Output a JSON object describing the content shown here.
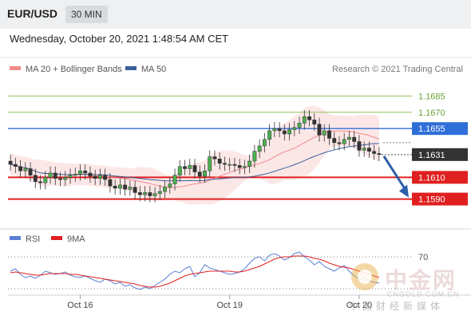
{
  "header": {
    "pair": "EUR/USD",
    "timeframe": "30 MIN"
  },
  "datetime": "Wednesday, October 20, 2021 1:48:54 AM CET",
  "watermark": {
    "cn": "中金网",
    "en": "CNGOLD.COM.CN",
    "sub": "中国财经新媒体"
  },
  "chart_data": {
    "type": "candlestick",
    "credit": "Research © 2021 Trading Central",
    "legend": [
      {
        "name": "MA 20 + Bollinger Bands",
        "color": "#f08a8a"
      },
      {
        "name": "MA 50",
        "color": "#3a5f9a"
      }
    ],
    "ylim": [
      1.5555,
      1.17
    ],
    "price_levels": [
      {
        "value": 1.1685,
        "label": "1.1685",
        "kind": "resistance-target",
        "color": "#8fbf5a"
      },
      {
        "value": 1.167,
        "label": "1.1670",
        "kind": "resistance-target",
        "color": "#8fbf5a"
      },
      {
        "value": 1.1655,
        "label": "1.1655",
        "kind": "pivot",
        "color": "#2f6fd8"
      },
      {
        "value": 1.1631,
        "label": "1.1631",
        "kind": "current-price",
        "color": "#333333"
      },
      {
        "value": 1.161,
        "label": "1.1610",
        "kind": "support-target",
        "color": "#e02020"
      },
      {
        "value": 1.159,
        "label": "1.1590",
        "kind": "support-target",
        "color": "#e02020"
      }
    ],
    "x_ticks": [
      {
        "label": "Oct 16",
        "bar": 14
      },
      {
        "label": "Oct 19",
        "bar": 44
      },
      {
        "label": "Oct 20",
        "bar": 70
      }
    ],
    "candles_close": [
      1.1622,
      1.162,
      1.1616,
      1.1618,
      1.1612,
      1.1606,
      1.1605,
      1.161,
      1.1614,
      1.1609,
      1.1608,
      1.161,
      1.1612,
      1.1613,
      1.1616,
      1.1614,
      1.1611,
      1.1609,
      1.1612,
      1.1608,
      1.1602,
      1.16,
      1.1603,
      1.1599,
      1.1601,
      1.1596,
      1.1594,
      1.1596,
      1.1593,
      1.1595,
      1.1597,
      1.1601,
      1.1604,
      1.1612,
      1.162,
      1.1618,
      1.1621,
      1.1615,
      1.1611,
      1.1616,
      1.1629,
      1.1627,
      1.1623,
      1.1622,
      1.1622,
      1.1621,
      1.1619,
      1.162,
      1.1625,
      1.1634,
      1.1639,
      1.1645,
      1.1653,
      1.1655,
      1.1653,
      1.165,
      1.1654,
      1.1656,
      1.166,
      1.1666,
      1.1663,
      1.1659,
      1.1649,
      1.1653,
      1.1646,
      1.1642,
      1.1641,
      1.1645,
      1.1647,
      1.1643,
      1.1635,
      1.1637,
      1.1634,
      1.1632,
      1.1631
    ],
    "forecast_arrow": {
      "from": 1.1631,
      "to": 1.159
    },
    "rsi": {
      "legend": [
        {
          "name": "RSI",
          "color": "#5a7fd6"
        },
        {
          "name": "9MA",
          "color": "#e02020"
        }
      ],
      "level_label": "70",
      "rsi_values": [
        52,
        55,
        48,
        44,
        46,
        43,
        47,
        52,
        50,
        48,
        49,
        51,
        47,
        45,
        44,
        46,
        43,
        40,
        38,
        42,
        40,
        36,
        38,
        33,
        35,
        31,
        29,
        32,
        30,
        34,
        38,
        42,
        48,
        52,
        50,
        55,
        58,
        45,
        50,
        60,
        56,
        54,
        52,
        50,
        48,
        49,
        51,
        55,
        62,
        68,
        70,
        65,
        72,
        74,
        71,
        66,
        69,
        74,
        76,
        70,
        66,
        60,
        64,
        58,
        55,
        52,
        56,
        59,
        52,
        46,
        42,
        44,
        40,
        38,
        37
      ],
      "ma_values": [
        50,
        51,
        50,
        49,
        48,
        47,
        47,
        48,
        49,
        49,
        49,
        49,
        48,
        48,
        47,
        46,
        45,
        44,
        43,
        42,
        41,
        40,
        39,
        38,
        37,
        36,
        34,
        33,
        32,
        32,
        33,
        35,
        37,
        40,
        43,
        46,
        48,
        49,
        50,
        51,
        52,
        52,
        52,
        52,
        52,
        51,
        51,
        52,
        54,
        56,
        58,
        61,
        64,
        67,
        69,
        70,
        70,
        71,
        71,
        71,
        70,
        68,
        67,
        65,
        62,
        60,
        58,
        57,
        56,
        54,
        52,
        50,
        48,
        46,
        44
      ]
    }
  }
}
